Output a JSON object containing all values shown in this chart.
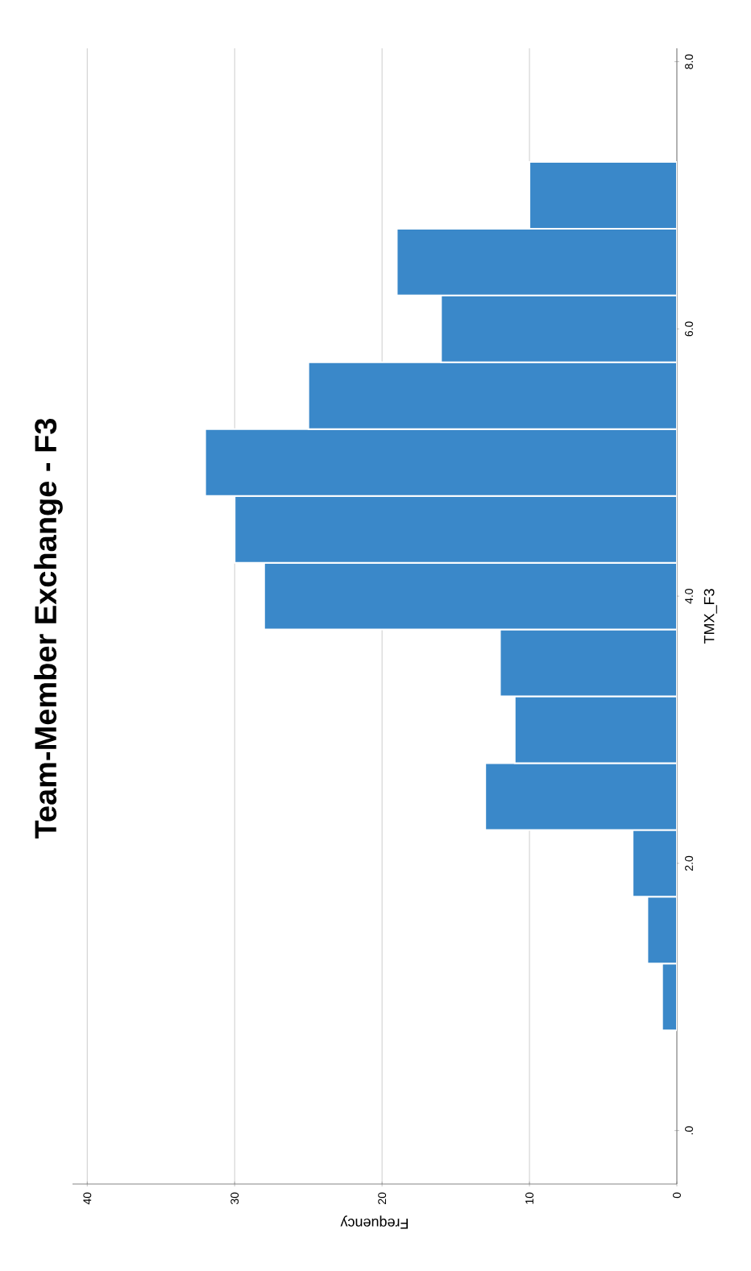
{
  "chart_data": {
    "type": "histogram",
    "orientation": "horizontal",
    "title": "Team-Member Exchange - F3",
    "xlabel": "Frequency",
    "ylabel": "TMX_F3",
    "bins": [
      0.75,
      1.25,
      1.75,
      2.25,
      2.75,
      3.25,
      3.75,
      4.25,
      4.75,
      5.25,
      5.75,
      6.25,
      6.75,
      7.25
    ],
    "values": [
      1,
      2,
      3,
      13,
      11,
      12,
      28,
      30,
      32,
      25,
      16,
      19,
      10
    ],
    "color": "#3a88c9",
    "ylim": [
      -0.4,
      8.1
    ],
    "yticks": [
      {
        "value": 0,
        "label": ".0"
      },
      {
        "value": 2,
        "label": "2.0"
      },
      {
        "value": 4,
        "label": "4.0"
      },
      {
        "value": 6,
        "label": "6.0"
      },
      {
        "value": 8,
        "label": "8.0"
      }
    ],
    "xlim": [
      41,
      0
    ],
    "xticks": [
      40,
      30,
      20,
      10,
      0
    ],
    "grid": "x"
  }
}
